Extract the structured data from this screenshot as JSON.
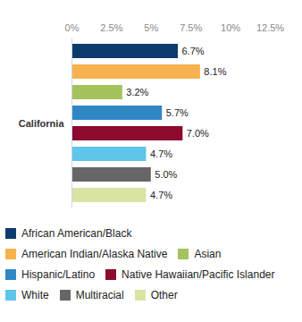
{
  "chart_data": {
    "type": "bar",
    "orientation": "horizontal",
    "categories": [
      "California"
    ],
    "series": [
      {
        "name": "African American/Black",
        "color": "#0d3b6e",
        "values": [
          6.7
        ],
        "value_labels": [
          "6.7%"
        ]
      },
      {
        "name": "American Indian/Alaska Native",
        "color": "#f6b24e",
        "values": [
          8.1
        ],
        "value_labels": [
          "8.1%"
        ]
      },
      {
        "name": "Asian",
        "color": "#a4c35c",
        "values": [
          3.2
        ],
        "value_labels": [
          "3.2%"
        ]
      },
      {
        "name": "Hispanic/Latino",
        "color": "#3187c4",
        "values": [
          5.7
        ],
        "value_labels": [
          "5.7%"
        ]
      },
      {
        "name": "Native Hawaiian/Pacific Islander",
        "color": "#8c0b2e",
        "values": [
          7.0
        ],
        "value_labels": [
          "7.0%"
        ]
      },
      {
        "name": "White",
        "color": "#5ec6e8",
        "values": [
          4.7
        ],
        "value_labels": [
          "4.7%"
        ]
      },
      {
        "name": "Multiracial",
        "color": "#666666",
        "values": [
          5.0
        ],
        "value_labels": [
          "5.0%"
        ]
      },
      {
        "name": "Other",
        "color": "#d9e4a3",
        "values": [
          4.7
        ],
        "value_labels": [
          "4.7%"
        ]
      }
    ],
    "xlim": [
      0,
      12.5
    ],
    "xticks": [
      {
        "value": 0,
        "label": "0%"
      },
      {
        "value": 2.5,
        "label": "2.5%"
      },
      {
        "value": 5,
        "label": "5%"
      },
      {
        "value": 7.5,
        "label": "7.5%"
      },
      {
        "value": 10,
        "label": "10%"
      },
      {
        "value": 12.5,
        "label": "12.5%"
      }
    ],
    "grid": false,
    "data_labels": true,
    "legend": "bottom"
  }
}
